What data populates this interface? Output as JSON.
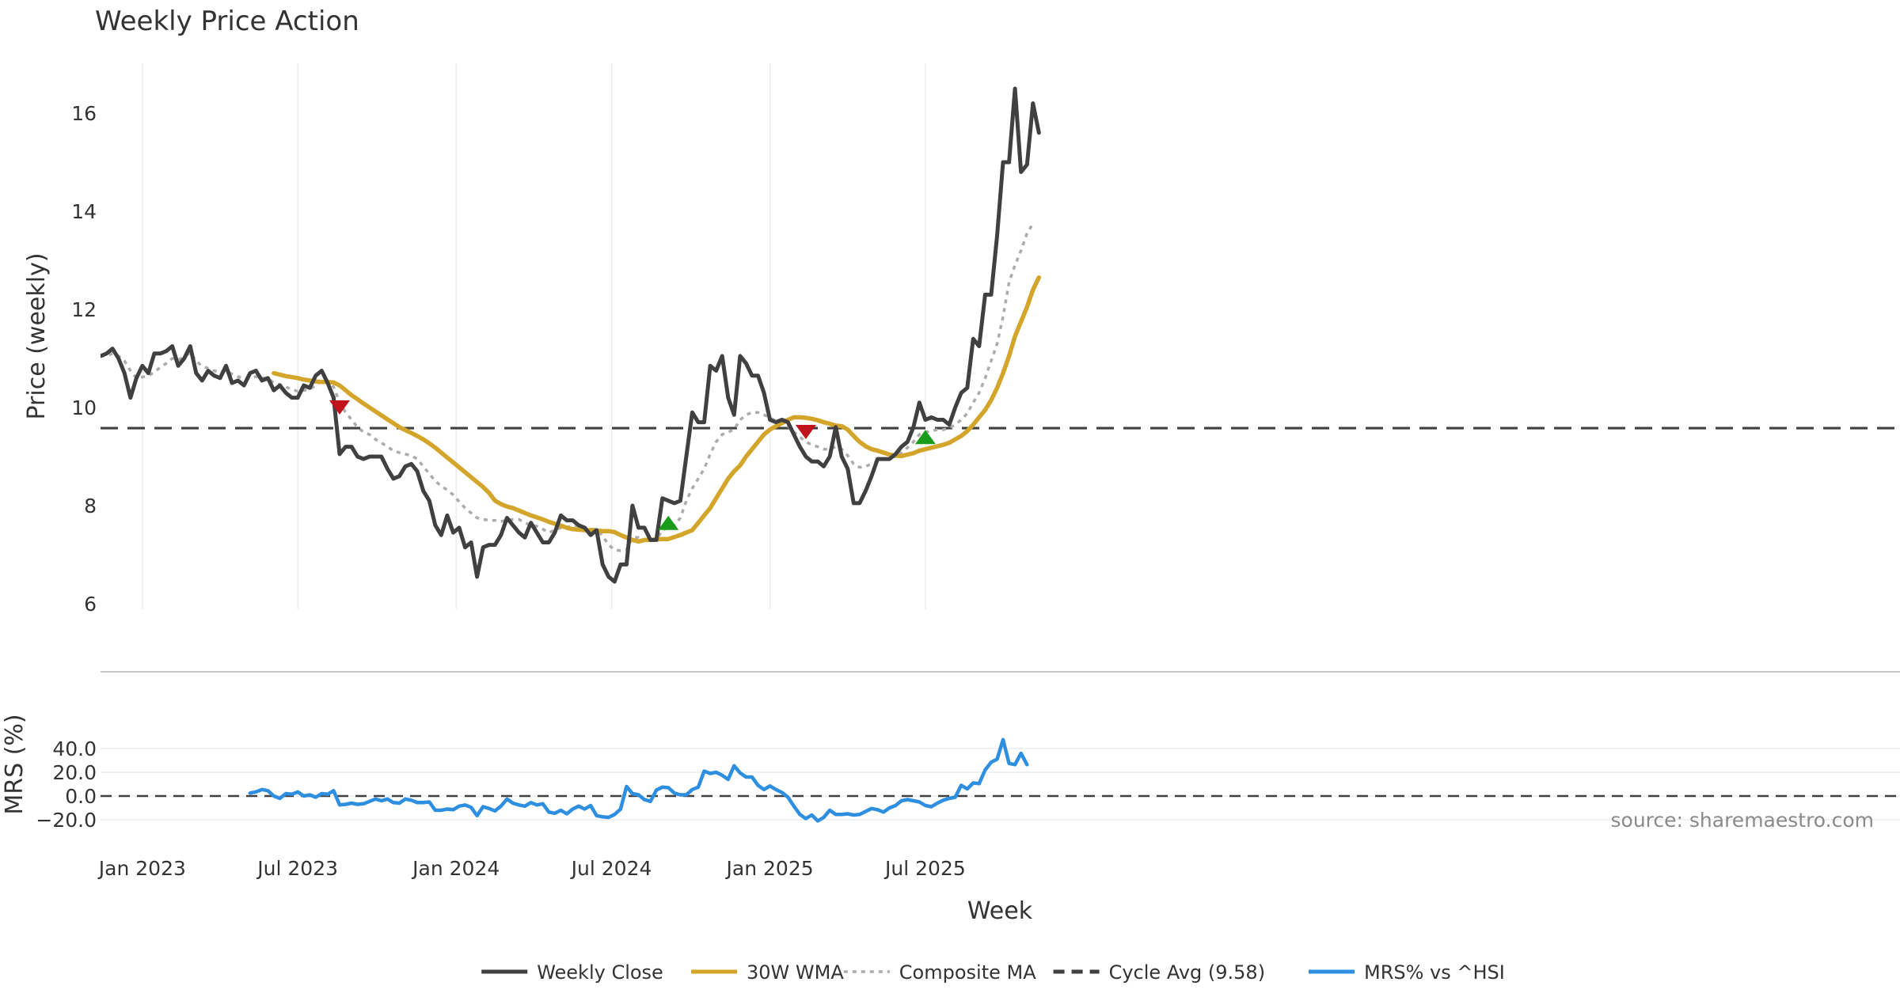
{
  "chart_data": {
    "type": "line",
    "title": "Weekly Price Action",
    "xlabel": "Week",
    "source": "source: sharemaestro.com",
    "x_ticks": [
      {
        "label": "Jan 2023",
        "week": 7
      },
      {
        "label": "Jul 2023",
        "week": 33
      },
      {
        "label": "Jan 2024",
        "week": 59.5
      },
      {
        "label": "Jul 2024",
        "week": 85.5
      },
      {
        "label": "Jan 2025",
        "week": 112
      },
      {
        "label": "Jul 2025",
        "week": 138
      }
    ],
    "price_panel": {
      "ylabel": "Price (weekly)",
      "ylim": [
        6,
        17
      ],
      "yticks": [
        6,
        8,
        10,
        12,
        14,
        16
      ],
      "cycle_avg": 9.58,
      "series": [
        {
          "name": "Weekly Close",
          "color": "#404040",
          "style": "solid",
          "start_week": 0,
          "values": [
            11.05,
            11.1,
            11.2,
            11.0,
            10.7,
            10.2,
            10.6,
            10.85,
            10.7,
            11.1,
            11.1,
            11.15,
            11.25,
            10.85,
            11.0,
            11.25,
            10.7,
            10.55,
            10.75,
            10.65,
            10.6,
            10.85,
            10.5,
            10.55,
            10.45,
            10.7,
            10.75,
            10.55,
            10.6,
            10.35,
            10.45,
            10.3,
            10.2,
            10.2,
            10.45,
            10.4,
            10.65,
            10.75,
            10.5,
            10.2,
            9.05,
            9.2,
            9.2,
            9.0,
            8.95,
            9.0,
            9.0,
            9.0,
            8.75,
            8.55,
            8.6,
            8.8,
            8.85,
            8.7,
            8.3,
            8.1,
            7.6,
            7.4,
            7.8,
            7.45,
            7.55,
            7.15,
            7.25,
            6.55,
            7.15,
            7.2,
            7.2,
            7.4,
            7.75,
            7.6,
            7.45,
            7.35,
            7.65,
            7.45,
            7.25,
            7.25,
            7.45,
            7.8,
            7.7,
            7.7,
            7.6,
            7.55,
            7.4,
            7.5,
            6.8,
            6.55,
            6.45,
            6.8,
            6.8,
            8.0,
            7.55,
            7.55,
            7.3,
            7.3,
            8.15,
            8.1,
            8.05,
            8.1,
            9.0,
            9.9,
            9.7,
            9.7,
            10.85,
            10.75,
            11.05,
            10.2,
            9.85,
            11.05,
            10.9,
            10.65,
            10.65,
            10.3,
            9.75,
            9.7,
            9.75,
            9.7,
            9.45,
            9.2,
            9.0,
            8.9,
            8.9,
            8.8,
            9.0,
            9.6,
            9.0,
            8.75,
            8.05,
            8.05,
            8.3,
            8.6,
            8.95,
            8.95,
            8.95,
            9.05,
            9.2,
            9.3,
            9.6,
            10.1,
            9.75,
            9.8,
            9.75,
            9.75,
            9.65,
            10.0,
            10.3,
            10.4,
            11.4,
            11.25,
            12.3,
            12.3,
            13.5,
            15.0,
            15.0,
            16.5,
            14.8,
            14.95,
            16.2,
            15.6
          ]
        },
        {
          "name": "30W WMA",
          "color": "#d4a52b",
          "style": "solid",
          "start_week": 29,
          "values": [
            10.7,
            10.67,
            10.64,
            10.62,
            10.6,
            10.57,
            10.55,
            10.53,
            10.52,
            10.52,
            10.51,
            10.45,
            10.35,
            10.25,
            10.17,
            10.08,
            10.0,
            9.92,
            9.84,
            9.76,
            9.68,
            9.6,
            9.54,
            9.48,
            9.42,
            9.35,
            9.27,
            9.18,
            9.08,
            8.98,
            8.88,
            8.78,
            8.68,
            8.58,
            8.48,
            8.38,
            8.26,
            8.1,
            8.03,
            7.98,
            7.95,
            7.9,
            7.85,
            7.8,
            7.76,
            7.72,
            7.67,
            7.63,
            7.59,
            7.55,
            7.52,
            7.51,
            7.5,
            7.5,
            7.49,
            7.48,
            7.48,
            7.46,
            7.4,
            7.35,
            7.3,
            7.27,
            7.3,
            7.3,
            7.31,
            7.32,
            7.32,
            7.36,
            7.4,
            7.45,
            7.5,
            7.65,
            7.8,
            7.95,
            8.15,
            8.35,
            8.55,
            8.7,
            8.82,
            9.0,
            9.15,
            9.3,
            9.45,
            9.55,
            9.62,
            9.68,
            9.75,
            9.8,
            9.8,
            9.79,
            9.77,
            9.74,
            9.7,
            9.67,
            9.63,
            9.62,
            9.55,
            9.42,
            9.3,
            9.21,
            9.15,
            9.12,
            9.08,
            9.04,
            9.02,
            9.01,
            9.04,
            9.07,
            9.12,
            9.15,
            9.18,
            9.21,
            9.24,
            9.28,
            9.35,
            9.42,
            9.52,
            9.65,
            9.8,
            9.95,
            10.15,
            10.4,
            10.7,
            11.05,
            11.45,
            11.75,
            12.05,
            12.4,
            12.65
          ]
        },
        {
          "name": "Composite MA",
          "color": "#b0aaaa",
          "style": "dotted",
          "start_week": 0,
          "values": [
            11.05,
            11.05,
            11.1,
            11.05,
            10.95,
            10.75,
            10.6,
            10.62,
            10.65,
            10.72,
            10.82,
            10.9,
            11.0,
            10.97,
            11.03,
            11.12,
            10.95,
            10.84,
            10.8,
            10.75,
            10.72,
            10.75,
            10.68,
            10.63,
            10.58,
            10.6,
            10.63,
            10.6,
            10.6,
            10.5,
            10.47,
            10.42,
            10.37,
            10.33,
            10.35,
            10.37,
            10.45,
            10.55,
            10.55,
            10.42,
            10.1,
            9.9,
            9.75,
            9.6,
            9.5,
            9.45,
            9.35,
            9.28,
            9.2,
            9.12,
            9.08,
            9.05,
            9.02,
            8.95,
            8.8,
            8.65,
            8.5,
            8.4,
            8.32,
            8.22,
            8.08,
            7.95,
            7.85,
            7.75,
            7.72,
            7.7,
            7.7,
            7.68,
            7.7,
            7.72,
            7.72,
            7.65,
            7.6,
            7.58,
            7.52,
            7.45,
            7.5,
            7.55,
            7.55,
            7.6,
            7.58,
            7.56,
            7.52,
            7.52,
            7.38,
            7.2,
            7.1,
            7.08,
            7.1,
            7.35,
            7.35,
            7.3,
            7.28,
            7.3,
            7.5,
            7.55,
            7.6,
            7.75,
            8.1,
            8.35,
            8.55,
            8.75,
            9.05,
            9.3,
            9.45,
            9.5,
            9.55,
            9.75,
            9.85,
            9.9,
            9.9,
            9.85,
            9.8,
            9.72,
            9.68,
            9.62,
            9.5,
            9.4,
            9.3,
            9.24,
            9.2,
            9.15,
            9.15,
            9.2,
            9.15,
            9.02,
            8.85,
            8.78,
            8.8,
            8.85,
            8.9,
            8.95,
            8.98,
            9.0,
            9.08,
            9.18,
            9.3,
            9.45,
            9.5,
            9.52,
            9.55,
            9.55,
            9.58,
            9.65,
            9.75,
            9.88,
            10.1,
            10.3,
            10.6,
            10.95,
            11.3,
            11.85,
            12.55,
            12.9,
            13.2,
            13.55,
            13.75
          ]
        }
      ],
      "signals": [
        {
          "type": "sell",
          "week": 40,
          "value": 10.0,
          "color": "#c0141c"
        },
        {
          "type": "buy",
          "week": 95,
          "value": 7.65,
          "color": "#1a9c1a"
        },
        {
          "type": "sell",
          "week": 118,
          "value": 9.5,
          "color": "#c0141c"
        },
        {
          "type": "buy",
          "week": 138,
          "value": 9.4,
          "color": "#1a9c1a"
        }
      ]
    },
    "mrs_panel": {
      "ylabel": "MRS (%)",
      "ylim": [
        -20,
        50
      ],
      "yticks": [
        40,
        20,
        0,
        -20
      ],
      "ytick_labels": [
        "40.0",
        "20.0",
        "0.0",
        "−20.0"
      ],
      "series": [
        {
          "name": "MRS% vs ^HSI",
          "color": "#2e8fe0",
          "style": "solid",
          "start_week": 25,
          "values": [
            2.5,
            3.5,
            5.5,
            4.5,
            0,
            -2,
            2,
            1.5,
            3.5,
            0,
            1,
            -1,
            2,
            1.5,
            4.5,
            -7.5,
            -7,
            -6,
            -7,
            -6.5,
            -4.5,
            -2.5,
            -4,
            -2.5,
            -5.5,
            -6,
            -2.5,
            -3.5,
            -5.5,
            -5.5,
            -5,
            -12,
            -12,
            -11,
            -11.5,
            -8.5,
            -7.5,
            -9.5,
            -16.5,
            -9,
            -10.5,
            -12.5,
            -8.5,
            -2.5,
            -6,
            -7.5,
            -8.5,
            -5.5,
            -7.5,
            -6.5,
            -13.5,
            -14.5,
            -12,
            -15,
            -11,
            -8.5,
            -11,
            -8,
            -16.5,
            -17.5,
            -18,
            -15.5,
            -11,
            8,
            2,
            1,
            -3,
            -4.5,
            5,
            7.5,
            7,
            2.5,
            1,
            1,
            5.5,
            7.5,
            21,
            19,
            20,
            17.5,
            14,
            25.5,
            19.5,
            16,
            16,
            9,
            5.5,
            8.5,
            5.5,
            3,
            -1,
            -8.5,
            -15.5,
            -19,
            -16,
            -21,
            -18,
            -12,
            -15.5,
            -15.5,
            -15,
            -16,
            -15.5,
            -13,
            -10.5,
            -11.5,
            -13.5,
            -10,
            -8,
            -4,
            -3,
            -4,
            -5,
            -8,
            -9,
            -6,
            -3.5,
            -2,
            -1,
            9,
            6,
            11,
            10.5,
            22,
            28.5,
            31,
            47.5,
            27.5,
            26.5,
            36,
            26.5
          ]
        }
      ]
    },
    "legend": [
      {
        "label": "Weekly Close",
        "color": "#404040",
        "style": "solid"
      },
      {
        "label": "30W WMA",
        "color": "#d4a52b",
        "style": "solid"
      },
      {
        "label": "Composite MA",
        "color": "#b0aaaa",
        "style": "dotted"
      },
      {
        "label": "Cycle Avg (9.58)",
        "color": "#404040",
        "style": "dashed"
      },
      {
        "label": "MRS% vs ^HSI",
        "color": "#2e8fe0",
        "style": "solid"
      }
    ]
  }
}
